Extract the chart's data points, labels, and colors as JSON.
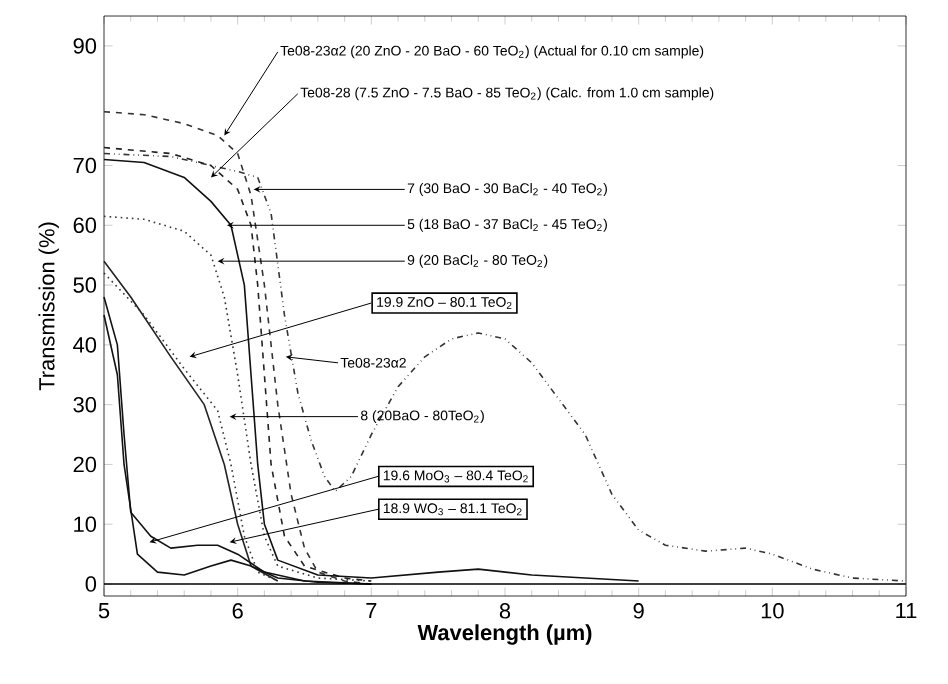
{
  "chart_data": {
    "type": "line",
    "xlabel": "Wavelength (µm)",
    "ylabel": "Transmission (%)",
    "xlim": [
      5,
      11
    ],
    "ylim": [
      -2,
      95
    ],
    "xticks": [
      5,
      6,
      7,
      8,
      9,
      10,
      11
    ],
    "yticks": [
      0,
      10,
      20,
      30,
      40,
      50,
      60,
      70,
      90
    ],
    "marker": "none",
    "series": [
      {
        "color": "#333333",
        "line_style": "dashed",
        "x": [
          5,
          5.3,
          5.6,
          5.85,
          6.0,
          6.1,
          6.2,
          6.3,
          6.4,
          6.5,
          6.6,
          6.8,
          7
        ],
        "values": [
          79,
          78.5,
          77,
          75,
          72,
          65,
          50,
          30,
          15,
          6,
          2,
          0.5,
          0
        ]
      },
      {
        "color": "#333333",
        "line_style": "dashdotdot",
        "x": [
          5,
          5.5,
          5.8,
          6.0,
          6.15,
          6.25,
          6.35,
          6.45,
          6.55,
          6.65,
          6.73,
          6.85,
          7.0,
          7.2,
          7.4,
          7.6,
          7.8,
          8.0,
          8.2,
          8.4,
          8.6,
          8.8,
          9.0,
          9.2,
          9.5,
          9.8,
          10.0,
          10.3,
          10.6,
          11
        ],
        "values": [
          72,
          71.5,
          70,
          69,
          68,
          62,
          45,
          32,
          24,
          18,
          15.5,
          18,
          25,
          33,
          38,
          41,
          42,
          41,
          37,
          31,
          25,
          15,
          9,
          6.5,
          5.5,
          6,
          5,
          2.5,
          1,
          0.5
        ]
      },
      {
        "color": "#222222",
        "line_style": "dashed",
        "x": [
          5,
          5.5,
          5.8,
          6.0,
          6.1,
          6.15,
          6.2,
          6.25,
          6.35,
          6.5,
          6.8,
          7
        ],
        "values": [
          73,
          72,
          70,
          66,
          60,
          50,
          35,
          20,
          8,
          3,
          1,
          0.5
        ]
      },
      {
        "color": "#111111",
        "line_style": "solid",
        "x": [
          5,
          5.3,
          5.6,
          5.8,
          5.95,
          6.05,
          6.1,
          6.15,
          6.2,
          6.3,
          6.6,
          7,
          7.5,
          7.8,
          8.2,
          9
        ],
        "values": [
          71,
          70.5,
          68,
          64,
          60,
          50,
          35,
          20,
          10,
          4,
          1.5,
          1,
          2,
          2.5,
          1.5,
          0.5
        ]
      },
      {
        "color": "#333333",
        "line_style": "dotted",
        "x": [
          5,
          5.3,
          5.6,
          5.8,
          5.9,
          6.0,
          6.1,
          6.2,
          6.3,
          6.6,
          7
        ],
        "values": [
          61.5,
          61,
          59,
          55,
          48,
          35,
          20,
          8,
          3,
          1,
          0.5
        ]
      },
      {
        "color": "#222222",
        "line_style": "solid",
        "x": [
          5,
          5.2,
          5.5,
          5.75,
          5.9,
          6.0,
          6.1,
          6.3
        ],
        "values": [
          54,
          48,
          38,
          30,
          20,
          10,
          3,
          0.5
        ]
      },
      {
        "color": "#333333",
        "line_style": "dotted",
        "x": [
          5,
          5.3,
          5.6,
          5.85,
          5.95,
          6.05,
          6.15,
          6.3
        ],
        "values": [
          52,
          45,
          36,
          29,
          20,
          8,
          2,
          0.5
        ]
      },
      {
        "color": "#111111",
        "line_style": "solid",
        "x": [
          5,
          5.1,
          5.15,
          5.2,
          5.35,
          5.5,
          5.7,
          5.85,
          6.0,
          6.2,
          6.5,
          7
        ],
        "values": [
          48,
          40,
          25,
          12,
          8,
          6,
          6.5,
          6.5,
          5,
          2,
          0.5,
          0
        ]
      },
      {
        "color": "#111111",
        "line_style": "solid",
        "x": [
          5,
          5.1,
          5.15,
          5.25,
          5.4,
          5.6,
          5.8,
          5.95,
          6.1,
          6.3,
          6.6,
          7
        ],
        "values": [
          45,
          35,
          20,
          5,
          2,
          1.5,
          3,
          4,
          3,
          1,
          0.3,
          0
        ]
      }
    ],
    "ref_lines": [
      {
        "axis": "y",
        "value": 0
      }
    ],
    "annotations": [
      {
        "text": "Te08-23α2 (20 ZnO - 20 BaO - 60 TeO$_{2}$) (Actual for 0.10 cm sample)",
        "x": 5.9,
        "y": 75
      },
      {
        "text": "Te08-28 (7.5 ZnO - 7.5 BaO - 85 TeO$_{2}$) (Calc. from 1.0 cm sample)",
        "x": 5.8,
        "y": 68
      },
      {
        "text": "7 (30 BaO - 30 BaCl$_{2}$ - 40 TeO$_{2}$)",
        "x": 6.12,
        "y": 66
      },
      {
        "text": "5 (18 BaO - 37 BaCl$_{2}$ - 45 TeO$_{2}$)",
        "x": 5.92,
        "y": 60
      },
      {
        "text": "9 (20 BaCl$_{2}$ - 80 TeO$_{2}$)",
        "x": 5.85,
        "y": 54
      },
      {
        "text": "19.9 ZnO – 80.1 TeO$_{2}$",
        "x": 5.64,
        "y": 38
      },
      {
        "text": "Te08-23α2",
        "x": 6.36,
        "y": 38
      },
      {
        "text": "8 (20BaO - 80TeO$_{2}$)",
        "x": 5.94,
        "y": 28
      },
      {
        "text": "19.6 MoO$_{3}$ – 80.4 TeO$_{2}$",
        "x": 5.34,
        "y": 7
      },
      {
        "text": "18.9 WO$_{3}$ – 81.1 TeO$_{2}$",
        "x": 5.94,
        "y": 7
      }
    ]
  }
}
